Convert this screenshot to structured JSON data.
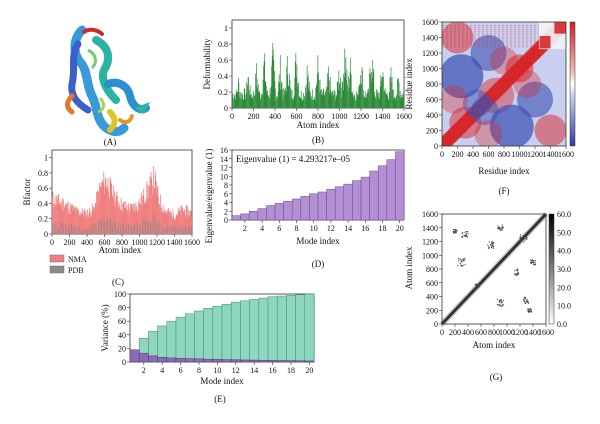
{
  "panel_labels": {
    "A": "(A)",
    "B": "(B)",
    "C": "(C)",
    "D": "(D)",
    "E": "(E)",
    "F": "(F)",
    "G": "(G)"
  },
  "colors": {
    "deform_green": "#2e8b3a",
    "bfactor_nma": "#f08080",
    "bfactor_pdb": "#888888",
    "eigen_purple": "#b58fd3",
    "variance_teal": "#8fd6bf",
    "variance_purple": "#8a6ab3",
    "map_red": "#d7262a",
    "map_blue": "#3b4fb3"
  },
  "structure": {
    "icon": "protein-ribbon-image"
  },
  "chart_data": [
    {
      "id": "B",
      "type": "bar",
      "title": "",
      "xlabel": "Atom index",
      "ylabel": "Deformability",
      "xlim": [
        0,
        1600
      ],
      "ylim": [
        0,
        1.1
      ],
      "xticks": [
        0,
        200,
        400,
        600,
        800,
        1000,
        1200,
        1400,
        1600
      ],
      "yticks": [
        0,
        0.2,
        0.4,
        0.6,
        0.8,
        1.0
      ],
      "ytick_labels": [
        "0",
        "0.2",
        "0.4",
        "0.6",
        "0.8",
        "1"
      ],
      "peaks": [
        {
          "x": 60,
          "y": 0.45
        },
        {
          "x": 150,
          "y": 0.55
        },
        {
          "x": 230,
          "y": 0.62
        },
        {
          "x": 300,
          "y": 0.78
        },
        {
          "x": 380,
          "y": 0.85
        },
        {
          "x": 450,
          "y": 0.7
        },
        {
          "x": 520,
          "y": 0.82
        },
        {
          "x": 600,
          "y": 0.9
        },
        {
          "x": 700,
          "y": 0.65
        },
        {
          "x": 800,
          "y": 0.72
        },
        {
          "x": 900,
          "y": 0.6
        },
        {
          "x": 1000,
          "y": 0.7
        },
        {
          "x": 1050,
          "y": 0.98
        },
        {
          "x": 1100,
          "y": 0.75
        },
        {
          "x": 1200,
          "y": 0.8
        },
        {
          "x": 1300,
          "y": 0.95
        },
        {
          "x": 1400,
          "y": 0.7
        },
        {
          "x": 1480,
          "y": 0.55
        },
        {
          "x": 1550,
          "y": 0.5
        }
      ],
      "baseline": 0.25
    },
    {
      "id": "C",
      "type": "bar",
      "title": "",
      "xlabel": "Atom index",
      "ylabel": "Bfactor",
      "xlim": [
        0,
        1600
      ],
      "ylim": [
        0,
        1.1
      ],
      "xticks": [
        0,
        200,
        400,
        600,
        800,
        1000,
        1200,
        1400,
        1600
      ],
      "yticks": [
        0,
        0.2,
        0.4,
        0.6,
        0.8,
        1.0
      ],
      "ytick_labels": [
        "0",
        "0.2",
        "0.4",
        "0.6",
        "0.8",
        "1"
      ],
      "legend": {
        "position": "bottom-left",
        "entries": [
          "NMA",
          "PDB"
        ]
      },
      "profile": [
        {
          "x": 0,
          "y": 0.55
        },
        {
          "x": 100,
          "y": 0.5
        },
        {
          "x": 200,
          "y": 0.42
        },
        {
          "x": 300,
          "y": 0.35
        },
        {
          "x": 400,
          "y": 0.32
        },
        {
          "x": 480,
          "y": 0.4
        },
        {
          "x": 560,
          "y": 0.75
        },
        {
          "x": 620,
          "y": 0.85
        },
        {
          "x": 700,
          "y": 0.62
        },
        {
          "x": 800,
          "y": 0.45
        },
        {
          "x": 900,
          "y": 0.4
        },
        {
          "x": 1000,
          "y": 0.48
        },
        {
          "x": 1100,
          "y": 0.7
        },
        {
          "x": 1170,
          "y": 0.88
        },
        {
          "x": 1220,
          "y": 0.55
        },
        {
          "x": 1300,
          "y": 0.35
        },
        {
          "x": 1400,
          "y": 0.3
        },
        {
          "x": 1500,
          "y": 0.38
        },
        {
          "x": 1600,
          "y": 0.32
        }
      ]
    },
    {
      "id": "D",
      "type": "bar",
      "title": "",
      "xlabel": "Mode index",
      "ylabel": "Eigenvalue/eigenvalue (1)",
      "annotation": "Eigenvalue (1) = 4.293217e–05",
      "xlim": [
        0.5,
        20.5
      ],
      "ylim": [
        0,
        16
      ],
      "xticks": [
        2,
        4,
        6,
        8,
        10,
        12,
        14,
        16,
        18,
        20
      ],
      "yticks": [
        0,
        2,
        4,
        6,
        8,
        10,
        12,
        14,
        16
      ],
      "categories": [
        1,
        2,
        3,
        4,
        5,
        6,
        7,
        8,
        9,
        10,
        11,
        12,
        13,
        14,
        15,
        16,
        17,
        18,
        19,
        20
      ],
      "values": [
        1.0,
        1.4,
        2.0,
        2.6,
        3.3,
        3.8,
        4.3,
        4.8,
        5.4,
        6.0,
        6.4,
        7.0,
        7.6,
        8.2,
        9.0,
        9.8,
        11.2,
        12.4,
        13.8,
        15.6
      ]
    },
    {
      "id": "E",
      "type": "bar",
      "title": "",
      "xlabel": "Mode index",
      "ylabel": "Variance (%)",
      "xlim": [
        0.5,
        20.5
      ],
      "ylim": [
        0,
        100
      ],
      "xticks": [
        2,
        4,
        6,
        8,
        10,
        12,
        14,
        16,
        18,
        20
      ],
      "yticks": [
        0,
        20,
        40,
        60,
        80,
        100
      ],
      "categories": [
        1,
        2,
        3,
        4,
        5,
        6,
        7,
        8,
        9,
        10,
        11,
        12,
        13,
        14,
        15,
        16,
        17,
        18,
        19,
        20
      ],
      "series": [
        {
          "values": [
            18,
            35,
            45,
            53,
            60,
            66,
            71,
            75,
            79,
            82,
            85,
            88,
            90,
            92,
            94,
            96,
            97,
            98,
            99,
            100
          ]
        },
        {
          "values": [
            18,
            13,
            9,
            7,
            6,
            5.5,
            5,
            4.6,
            4.2,
            3.9,
            3.6,
            3.3,
            3.0,
            2.8,
            2.6,
            2.4,
            2.2,
            2.0,
            1.8,
            1.6
          ]
        }
      ]
    },
    {
      "id": "F",
      "type": "heatmap",
      "title": "",
      "xlabel": "Residue index",
      "ylabel": "Residue index",
      "xlim": [
        0,
        1600
      ],
      "ylim": [
        0,
        1600
      ],
      "xticks": [
        0,
        200,
        400,
        600,
        800,
        1000,
        1200,
        1400,
        1600
      ],
      "yticks": [
        0,
        200,
        400,
        600,
        800,
        1000,
        1200,
        1400,
        1600
      ]
    },
    {
      "id": "G",
      "type": "heatmap",
      "title": "",
      "xlabel": "Atom index",
      "ylabel": "Atom index",
      "xlim": [
        0,
        1600
      ],
      "ylim": [
        0,
        1600
      ],
      "xticks": [
        0,
        200,
        400,
        600,
        800,
        1000,
        1200,
        1400,
        1600
      ],
      "yticks": [
        0,
        200,
        400,
        600,
        800,
        1000,
        1200,
        1400,
        1600
      ],
      "colorbar_ticks": [
        0.0,
        10.0,
        20.0,
        30.0,
        40.0,
        50.0,
        60.0
      ],
      "colorbar_labels": [
        "0.0",
        "10.0",
        "20.0",
        "30.0",
        "40.0",
        "50.0",
        "60.0"
      ]
    }
  ]
}
